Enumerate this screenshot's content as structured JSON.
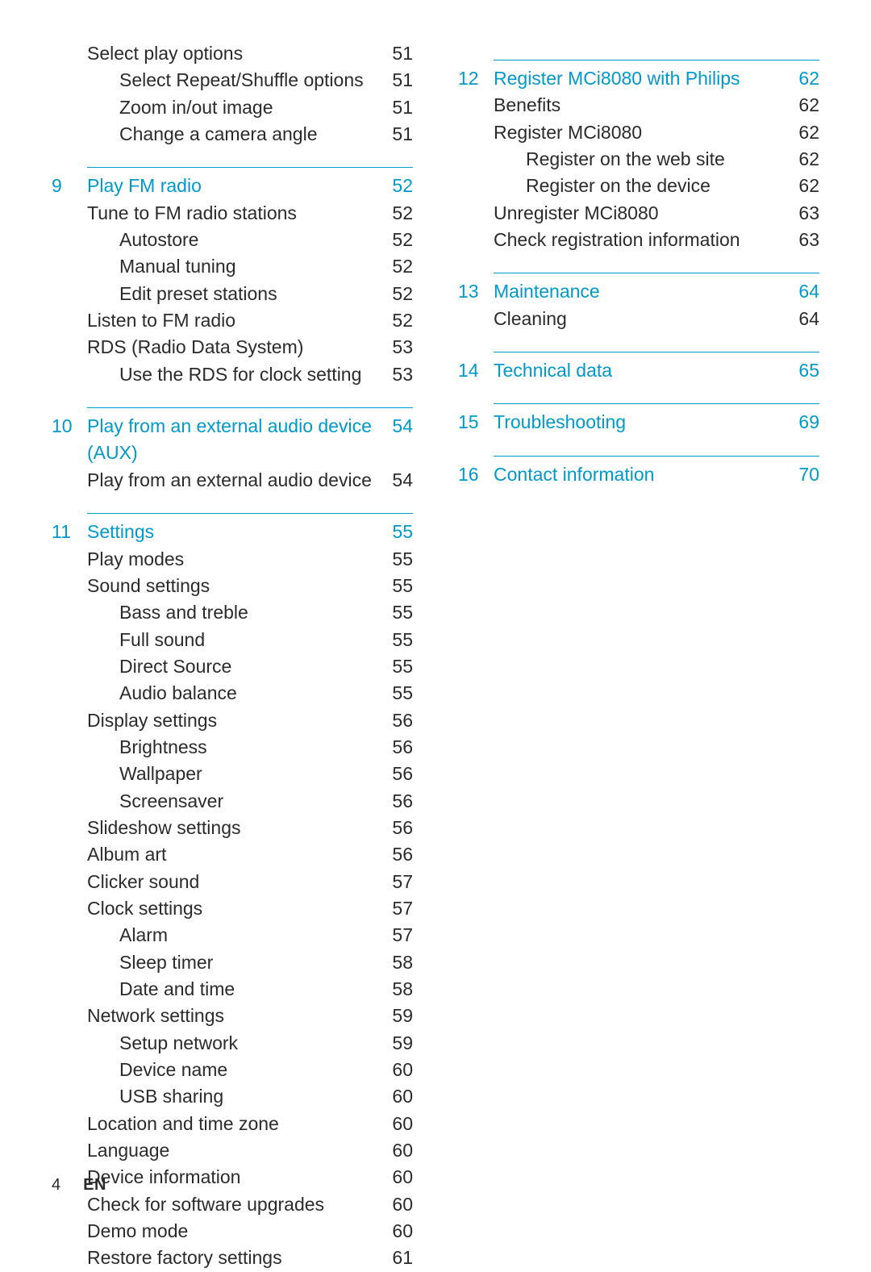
{
  "footer": {
    "page": "4",
    "lang": "EN"
  },
  "accent_color": "#0099cc",
  "left": [
    {
      "type": "row",
      "num": "",
      "title": "Select play options",
      "page": "51",
      "indent": 1
    },
    {
      "type": "row",
      "num": "",
      "title": "Select Repeat/Shuffle options",
      "page": "51",
      "indent": 2
    },
    {
      "type": "row",
      "num": "",
      "title": "Zoom in/out image",
      "page": "51",
      "indent": 2
    },
    {
      "type": "row",
      "num": "",
      "title": "Change a camera angle",
      "page": "51",
      "indent": 2
    },
    {
      "type": "sep"
    },
    {
      "type": "row",
      "num": "9",
      "title": "Play FM radio",
      "page": "52",
      "chapter": true
    },
    {
      "type": "row",
      "num": "",
      "title": "Tune to FM radio stations",
      "page": "52",
      "indent": 1
    },
    {
      "type": "row",
      "num": "",
      "title": "Autostore",
      "page": "52",
      "indent": 2
    },
    {
      "type": "row",
      "num": "",
      "title": "Manual tuning",
      "page": "52",
      "indent": 2
    },
    {
      "type": "row",
      "num": "",
      "title": "Edit preset stations",
      "page": "52",
      "indent": 2
    },
    {
      "type": "row",
      "num": "",
      "title": "Listen to FM radio",
      "page": "52",
      "indent": 1
    },
    {
      "type": "row",
      "num": "",
      "title": "RDS (Radio Data System)",
      "page": "53",
      "indent": 1
    },
    {
      "type": "row",
      "num": "",
      "title": "Use the RDS for clock setting",
      "page": "53",
      "indent": 2
    },
    {
      "type": "sep"
    },
    {
      "type": "row",
      "num": "10",
      "title": "Play from an external audio device (AUX)",
      "page": "54",
      "chapter": true
    },
    {
      "type": "row",
      "num": "",
      "title": "Play from an external audio device",
      "page": "54",
      "indent": 1
    },
    {
      "type": "sep"
    },
    {
      "type": "row",
      "num": "11",
      "title": "Settings",
      "page": "55",
      "chapter": true
    },
    {
      "type": "row",
      "num": "",
      "title": "Play modes",
      "page": "55",
      "indent": 1
    },
    {
      "type": "row",
      "num": "",
      "title": "Sound settings",
      "page": "55",
      "indent": 1
    },
    {
      "type": "row",
      "num": "",
      "title": "Bass and treble",
      "page": "55",
      "indent": 2
    },
    {
      "type": "row",
      "num": "",
      "title": "Full sound",
      "page": "55",
      "indent": 2
    },
    {
      "type": "row",
      "num": "",
      "title": "Direct Source",
      "page": "55",
      "indent": 2
    },
    {
      "type": "row",
      "num": "",
      "title": "Audio balance",
      "page": "55",
      "indent": 2
    },
    {
      "type": "row",
      "num": "",
      "title": "Display settings",
      "page": "56",
      "indent": 1
    },
    {
      "type": "row",
      "num": "",
      "title": "Brightness",
      "page": "56",
      "indent": 2
    },
    {
      "type": "row",
      "num": "",
      "title": "Wallpaper",
      "page": "56",
      "indent": 2
    },
    {
      "type": "row",
      "num": "",
      "title": "Screensaver",
      "page": "56",
      "indent": 2
    },
    {
      "type": "row",
      "num": "",
      "title": "Slideshow settings",
      "page": "56",
      "indent": 1
    },
    {
      "type": "row",
      "num": "",
      "title": "Album art",
      "page": "56",
      "indent": 1
    },
    {
      "type": "row",
      "num": "",
      "title": "Clicker sound",
      "page": "57",
      "indent": 1
    },
    {
      "type": "row",
      "num": "",
      "title": "Clock settings",
      "page": "57",
      "indent": 1
    },
    {
      "type": "row",
      "num": "",
      "title": "Alarm",
      "page": "57",
      "indent": 2
    },
    {
      "type": "row",
      "num": "",
      "title": "Sleep timer",
      "page": "58",
      "indent": 2
    },
    {
      "type": "row",
      "num": "",
      "title": "Date and time",
      "page": "58",
      "indent": 2
    },
    {
      "type": "row",
      "num": "",
      "title": "Network settings",
      "page": "59",
      "indent": 1
    },
    {
      "type": "row",
      "num": "",
      "title": "Setup network",
      "page": "59",
      "indent": 2
    },
    {
      "type": "row",
      "num": "",
      "title": "Device name",
      "page": "60",
      "indent": 2
    },
    {
      "type": "row",
      "num": "",
      "title": "USB sharing",
      "page": "60",
      "indent": 2
    },
    {
      "type": "row",
      "num": "",
      "title": "Location and time zone",
      "page": "60",
      "indent": 1
    },
    {
      "type": "row",
      "num": "",
      "title": "Language",
      "page": "60",
      "indent": 1
    },
    {
      "type": "row",
      "num": "",
      "title": "Device information",
      "page": "60",
      "indent": 1
    },
    {
      "type": "row",
      "num": "",
      "title": "Check for software upgrades",
      "page": "60",
      "indent": 1
    },
    {
      "type": "row",
      "num": "",
      "title": "Demo mode",
      "page": "60",
      "indent": 1
    },
    {
      "type": "row",
      "num": "",
      "title": "Restore factory settings",
      "page": "61",
      "indent": 1
    }
  ],
  "right": [
    {
      "type": "sep"
    },
    {
      "type": "row",
      "num": "12",
      "title": "Register MCi8080 with Philips",
      "page": "62",
      "chapter": true
    },
    {
      "type": "row",
      "num": "",
      "title": "Benefits",
      "page": "62",
      "indent": 1
    },
    {
      "type": "row",
      "num": "",
      "title": "Register MCi8080",
      "page": "62",
      "indent": 1
    },
    {
      "type": "row",
      "num": "",
      "title": "Register on the web site",
      "page": "62",
      "indent": 2
    },
    {
      "type": "row",
      "num": "",
      "title": "Register on the device",
      "page": "62",
      "indent": 2
    },
    {
      "type": "row",
      "num": "",
      "title": "Unregister MCi8080",
      "page": "63",
      "indent": 1
    },
    {
      "type": "row",
      "num": "",
      "title": "Check registration information",
      "page": "63",
      "indent": 1
    },
    {
      "type": "sep"
    },
    {
      "type": "row",
      "num": "13",
      "title": "Maintenance",
      "page": "64",
      "chapter": true
    },
    {
      "type": "row",
      "num": "",
      "title": "Cleaning",
      "page": "64",
      "indent": 1
    },
    {
      "type": "sep"
    },
    {
      "type": "row",
      "num": "14",
      "title": "Technical data",
      "page": "65",
      "chapter": true
    },
    {
      "type": "sep"
    },
    {
      "type": "row",
      "num": "15",
      "title": "Troubleshooting",
      "page": "69",
      "chapter": true
    },
    {
      "type": "sep"
    },
    {
      "type": "row",
      "num": "16",
      "title": "Contact information",
      "page": "70",
      "chapter": true
    }
  ]
}
